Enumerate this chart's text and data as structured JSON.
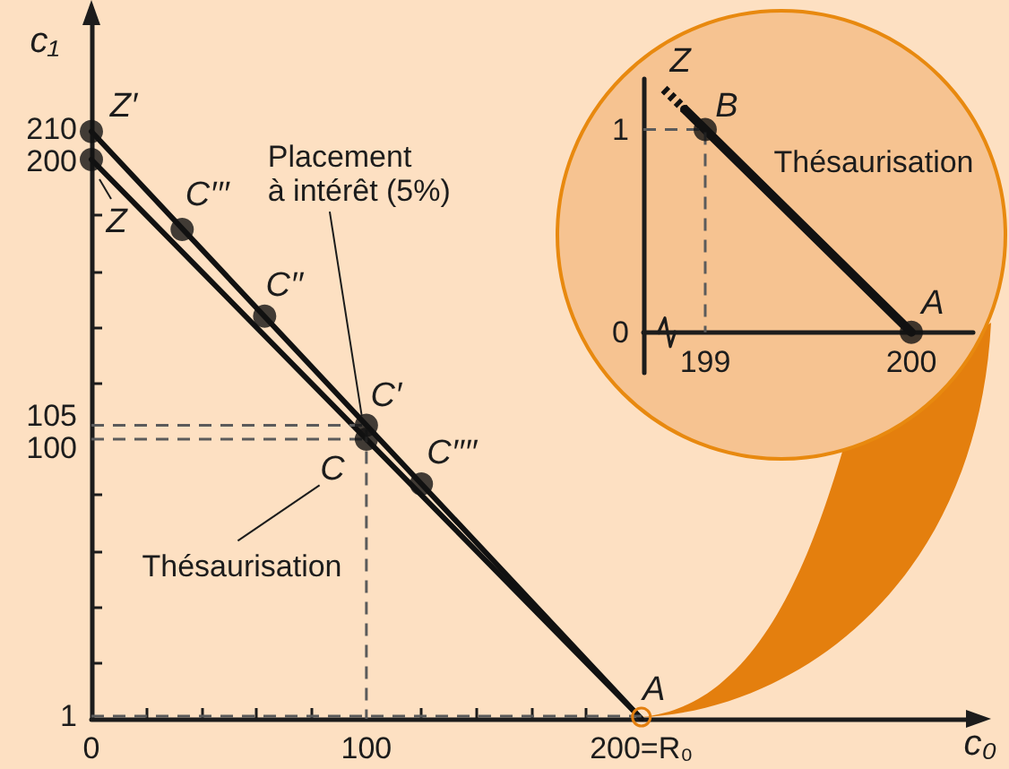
{
  "chart_data": [
    {
      "type": "line",
      "xlabel": "c₀",
      "ylabel": "c₁",
      "xlim": [
        0,
        320
      ],
      "ylim": [
        0,
        250
      ],
      "xticks": [
        0,
        {
          "value": 20,
          "label": null
        },
        {
          "value": 40,
          "label": null
        },
        {
          "value": 60,
          "label": null
        },
        {
          "value": 80,
          "label": null
        },
        100,
        {
          "value": 120,
          "label": null
        },
        {
          "value": 140,
          "label": null
        },
        {
          "value": 160,
          "label": null
        },
        {
          "value": 180,
          "label": null
        },
        {
          "value": 200,
          "label": "200=R₀"
        }
      ],
      "yticks": [
        1,
        {
          "value": 20,
          "label": null
        },
        {
          "value": 40,
          "label": null
        },
        {
          "value": 60,
          "label": null
        },
        {
          "value": 80,
          "label": null
        },
        100,
        105,
        {
          "value": 120,
          "label": null
        },
        {
          "value": 140,
          "label": null
        },
        {
          "value": 160,
          "label": null
        },
        {
          "value": 180,
          "label": null
        },
        200,
        210
      ],
      "series": [
        {
          "type": "line",
          "color": "#111111",
          "x": [
            0,
            200
          ],
          "values": [
            210,
            0
          ],
          "line_style": "solid"
        },
        {
          "type": "line",
          "color": "#111111",
          "x": [
            0,
            200
          ],
          "values": [
            200,
            0
          ],
          "line_style": "solid"
        },
        {
          "type": "scatter",
          "color": "#111111",
          "x": [
            0,
            33,
            63,
            100,
            120,
            0,
            100
          ],
          "values": [
            210,
            175,
            144,
            105,
            84,
            200,
            100
          ],
          "marker": "circle"
        },
        {
          "type": "line",
          "color": "#5b5b5b",
          "x": [
            0,
            100,
            100
          ],
          "values": [
            105,
            105,
            0
          ],
          "line_style": "dashed"
        },
        {
          "type": "line",
          "color": "#5b5b5b",
          "x": [
            0,
            100
          ],
          "values": [
            100,
            100
          ],
          "line_style": "dashed"
        },
        {
          "type": "line",
          "color": "#5b5b5b",
          "x": [
            0,
            200
          ],
          "values": [
            1,
            1
          ],
          "line_style": "dashed"
        }
      ],
      "annotations": [
        {
          "text": "Z′",
          "x": 0,
          "y": 210
        },
        {
          "text": "Z",
          "x": 0,
          "y": 200
        },
        {
          "text": "C′′′",
          "x": 33,
          "y": 175
        },
        {
          "text": "C′′",
          "x": 63,
          "y": 144
        },
        {
          "text": "C′",
          "x": 100,
          "y": 105
        },
        {
          "text": "C",
          "x": 100,
          "y": 100
        },
        {
          "text": "C′′′′",
          "x": 120,
          "y": 84
        },
        {
          "text": "A",
          "x": 200,
          "y": 0
        },
        {
          "text": "Placement à intérêt (5%)",
          "x": 98,
          "y": 107
        },
        "Thésaurisation"
      ]
    },
    {
      "type": "line",
      "xlim": [
        198.7,
        200.3
      ],
      "ylim": [
        -0.2,
        1.25
      ],
      "xticks": [
        199,
        200
      ],
      "yticks": [
        0,
        1
      ],
      "series": [
        {
          "type": "line",
          "color": "#111111",
          "x": [
            198.9,
            200
          ],
          "values": [
            1.1,
            0
          ],
          "line_style": "solid"
        },
        {
          "type": "line",
          "color": "#111111",
          "x": [
            198.8,
            198.9
          ],
          "values": [
            1.2,
            1.1
          ],
          "line_style": "dotted"
        },
        {
          "type": "scatter",
          "color": "#111111",
          "x": [
            199,
            200
          ],
          "values": [
            1,
            0
          ],
          "marker": "circle"
        },
        {
          "type": "line",
          "color": "#5b5b5b",
          "x": [
            198.7,
            199,
            199
          ],
          "values": [
            1,
            1,
            0
          ],
          "line_style": "dashed"
        }
      ],
      "annotations": [
        {
          "text": "Z",
          "x": 198.8,
          "y": 1.2
        },
        {
          "text": "B",
          "x": 199,
          "y": 1
        },
        {
          "text": "A",
          "x": 200,
          "y": 0
        },
        {
          "text": "Thésaurisation",
          "x": 199.4,
          "y": 0.6
        }
      ]
    }
  ]
}
